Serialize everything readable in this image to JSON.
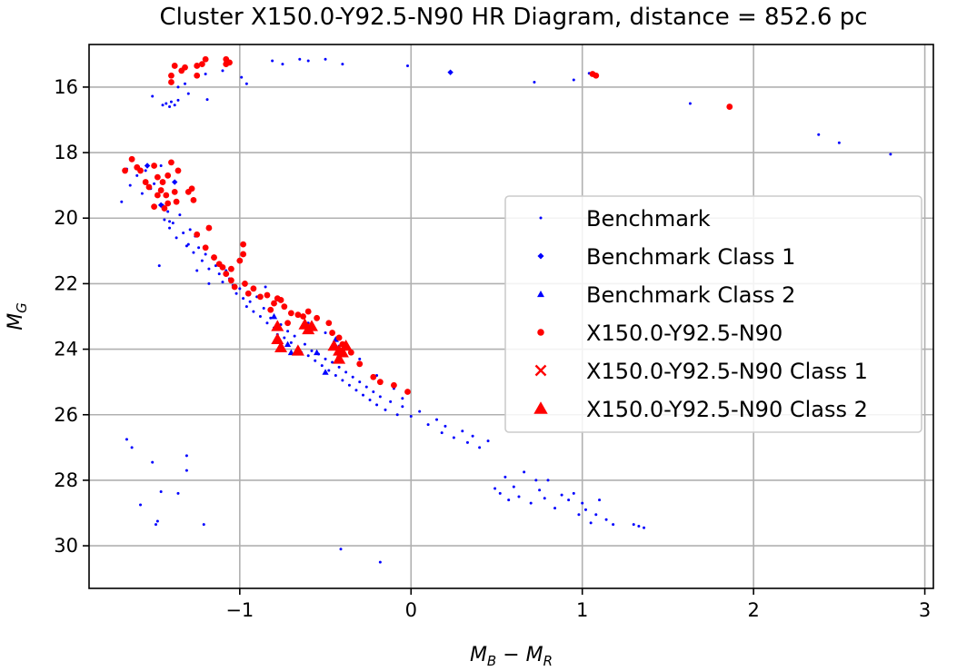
{
  "chart_data": {
    "type": "scatter",
    "title": "Cluster X150.0-Y92.5-N90 HR Diagram, distance = 852.6 pc",
    "xlabel_base": "M",
    "xlabel_sub1": "B",
    "xlabel_sep": " − ",
    "xlabel_base2": "M",
    "xlabel_sub2": "R",
    "ylabel_base": "M",
    "ylabel_sub": "G",
    "xlim": [
      -1.88,
      3.05
    ],
    "ylim": [
      31.3,
      14.7
    ],
    "y_inverted": true,
    "grid": true,
    "legend_position": "right",
    "xticks": [
      -1,
      0,
      1,
      2,
      3
    ],
    "xtick_labels": [
      "−1",
      "0",
      "1",
      "2",
      "3"
    ],
    "yticks": [
      16,
      18,
      20,
      22,
      24,
      26,
      28,
      30
    ],
    "ytick_labels": [
      "16",
      "18",
      "20",
      "22",
      "24",
      "26",
      "28",
      "30"
    ],
    "colors": {
      "benchmark": "#0000ff",
      "cluster": "#ff0000"
    },
    "series": [
      {
        "name": "Benchmark",
        "marker": "point",
        "color": "#0000ff",
        "points": [
          [
            -1.51,
            16.28
          ],
          [
            -1.45,
            16.55
          ],
          [
            -1.43,
            16.5
          ],
          [
            -1.41,
            16.6
          ],
          [
            -1.4,
            16.45
          ],
          [
            -1.38,
            16.55
          ],
          [
            -1.36,
            16.4
          ],
          [
            -1.36,
            16.0
          ],
          [
            -1.32,
            15.9
          ],
          [
            -1.3,
            16.2
          ],
          [
            -1.19,
            16.38
          ],
          [
            -1.2,
            15.6
          ],
          [
            -1.1,
            15.5
          ],
          [
            -0.99,
            15.7
          ],
          [
            -0.96,
            15.9
          ],
          [
            -0.81,
            15.2
          ],
          [
            -0.75,
            15.3
          ],
          [
            -0.65,
            15.15
          ],
          [
            -0.6,
            15.2
          ],
          [
            -0.5,
            15.15
          ],
          [
            -0.4,
            15.3
          ],
          [
            -0.02,
            15.35
          ],
          [
            0.72,
            15.85
          ],
          [
            0.95,
            15.78
          ],
          [
            1.04,
            15.58
          ],
          [
            1.63,
            16.5
          ],
          [
            2.38,
            17.45
          ],
          [
            2.5,
            17.7
          ],
          [
            2.8,
            18.05
          ],
          [
            -1.69,
            19.5
          ],
          [
            -1.66,
            18.5
          ],
          [
            -1.64,
            19.0
          ],
          [
            -1.6,
            18.7
          ],
          [
            -1.57,
            19.25
          ],
          [
            -1.55,
            18.55
          ],
          [
            -1.52,
            19.1
          ],
          [
            -1.5,
            18.95
          ],
          [
            -1.48,
            19.3
          ],
          [
            -1.46,
            18.4
          ],
          [
            -1.45,
            19.6
          ],
          [
            -1.44,
            20.05
          ],
          [
            -1.42,
            19.8
          ],
          [
            -1.41,
            20.3
          ],
          [
            -1.39,
            20.15
          ],
          [
            -1.37,
            20.6
          ],
          [
            -1.35,
            19.9
          ],
          [
            -1.33,
            20.45
          ],
          [
            -1.31,
            20.85
          ],
          [
            -1.29,
            20.35
          ],
          [
            -1.27,
            21.05
          ],
          [
            -1.26,
            20.55
          ],
          [
            -1.24,
            20.9
          ],
          [
            -1.22,
            21.3
          ],
          [
            -1.2,
            21.1
          ],
          [
            -1.18,
            21.55
          ],
          [
            -1.16,
            21.2
          ],
          [
            -1.14,
            21.45
          ],
          [
            -1.12,
            21.7
          ],
          [
            -1.1,
            21.95
          ],
          [
            -1.08,
            21.6
          ],
          [
            -1.06,
            21.85
          ],
          [
            -1.04,
            22.05
          ],
          [
            -1.02,
            22.3
          ],
          [
            -1.0,
            22.15
          ],
          [
            -0.98,
            22.45
          ],
          [
            -0.96,
            22.7
          ],
          [
            -0.94,
            22.55
          ],
          [
            -0.92,
            22.85
          ],
          [
            -0.9,
            22.4
          ],
          [
            -0.88,
            23.0
          ],
          [
            -0.86,
            22.75
          ],
          [
            -0.84,
            23.2
          ],
          [
            -0.82,
            23.05
          ],
          [
            -0.8,
            23.35
          ],
          [
            -0.78,
            23.55
          ],
          [
            -0.76,
            23.25
          ],
          [
            -0.74,
            23.65
          ],
          [
            -0.72,
            23.45
          ],
          [
            -0.7,
            23.8
          ],
          [
            -0.68,
            23.6
          ],
          [
            -0.66,
            23.95
          ],
          [
            -0.64,
            24.1
          ],
          [
            -0.62,
            23.85
          ],
          [
            -0.6,
            24.2
          ],
          [
            -0.58,
            24.05
          ],
          [
            -0.56,
            24.35
          ],
          [
            -0.54,
            24.15
          ],
          [
            -0.52,
            24.5
          ],
          [
            -0.5,
            24.3
          ],
          [
            -0.48,
            24.65
          ],
          [
            -0.46,
            24.4
          ],
          [
            -0.44,
            24.8
          ],
          [
            -0.42,
            24.55
          ],
          [
            -0.4,
            24.95
          ],
          [
            -0.38,
            24.7
          ],
          [
            -0.36,
            25.1
          ],
          [
            -0.34,
            24.85
          ],
          [
            -0.32,
            25.25
          ],
          [
            -0.3,
            25.0
          ],
          [
            -0.28,
            25.4
          ],
          [
            -0.26,
            25.15
          ],
          [
            -0.24,
            25.55
          ],
          [
            -0.22,
            25.3
          ],
          [
            -0.2,
            25.7
          ],
          [
            -0.18,
            25.45
          ],
          [
            -0.15,
            25.85
          ],
          [
            -0.12,
            25.6
          ],
          [
            -0.08,
            26.0
          ],
          [
            -0.05,
            25.75
          ],
          [
            0.0,
            26.05
          ],
          [
            0.05,
            25.9
          ],
          [
            0.1,
            26.3
          ],
          [
            0.15,
            26.15
          ],
          [
            0.18,
            26.55
          ],
          [
            0.2,
            26.35
          ],
          [
            0.25,
            26.7
          ],
          [
            0.3,
            26.5
          ],
          [
            0.33,
            26.85
          ],
          [
            0.36,
            26.65
          ],
          [
            0.4,
            27.0
          ],
          [
            0.45,
            26.8
          ],
          [
            0.49,
            28.25
          ],
          [
            0.52,
            28.4
          ],
          [
            0.55,
            27.9
          ],
          [
            0.57,
            28.6
          ],
          [
            0.6,
            28.2
          ],
          [
            0.63,
            28.5
          ],
          [
            0.66,
            27.75
          ],
          [
            0.7,
            28.7
          ],
          [
            0.73,
            28.0
          ],
          [
            0.75,
            28.3
          ],
          [
            0.78,
            28.55
          ],
          [
            0.8,
            28.0
          ],
          [
            0.84,
            28.85
          ],
          [
            0.88,
            28.45
          ],
          [
            0.92,
            28.6
          ],
          [
            0.95,
            28.4
          ],
          [
            0.98,
            29.05
          ],
          [
            1.0,
            28.7
          ],
          [
            1.02,
            28.9
          ],
          [
            1.05,
            29.3
          ],
          [
            1.08,
            29.05
          ],
          [
            1.1,
            28.6
          ],
          [
            1.14,
            29.2
          ],
          [
            1.18,
            29.35
          ],
          [
            1.3,
            29.35
          ],
          [
            1.33,
            29.4
          ],
          [
            1.36,
            29.45
          ],
          [
            -1.41,
            20.1
          ],
          [
            -1.47,
            21.45
          ],
          [
            -1.25,
            21.6
          ],
          [
            -1.18,
            22.0
          ],
          [
            -1.3,
            20.8
          ],
          [
            -0.85,
            22.1
          ],
          [
            -0.7,
            22.9
          ],
          [
            -0.6,
            23.2
          ],
          [
            -0.5,
            23.5
          ],
          [
            -0.42,
            23.9
          ],
          [
            -0.3,
            24.3
          ],
          [
            -0.2,
            24.8
          ],
          [
            -0.1,
            25.2
          ],
          [
            -0.05,
            25.5
          ],
          [
            -1.66,
            26.75
          ],
          [
            -1.63,
            27.0
          ],
          [
            -1.58,
            28.75
          ],
          [
            -1.51,
            27.45
          ],
          [
            -1.49,
            29.35
          ],
          [
            -1.48,
            29.25
          ],
          [
            -1.46,
            28.35
          ],
          [
            -1.36,
            28.4
          ],
          [
            -1.31,
            27.7
          ],
          [
            -1.31,
            27.25
          ],
          [
            -1.21,
            29.35
          ],
          [
            -0.41,
            30.1
          ],
          [
            -0.18,
            30.5
          ]
        ]
      },
      {
        "name": "Benchmark Class 1",
        "marker": "diamond",
        "color": "#0000ff",
        "points": [
          [
            -1.54,
            18.4
          ],
          [
            -1.46,
            19.6
          ],
          [
            0.23,
            15.55
          ],
          [
            -1.38,
            18.9
          ]
        ]
      },
      {
        "name": "Benchmark Class 2",
        "marker": "triangle-small",
        "color": "#0000ff",
        "points": [
          [
            -0.8,
            23.0
          ],
          [
            -0.72,
            23.85
          ],
          [
            -0.66,
            24.05
          ],
          [
            -0.55,
            24.1
          ],
          [
            -0.5,
            24.7
          ],
          [
            -0.42,
            24.1
          ],
          [
            -0.38,
            23.85
          ],
          [
            -0.44,
            23.7
          ],
          [
            -0.6,
            23.35
          ],
          [
            -0.7,
            24.1
          ]
        ]
      },
      {
        "name": "X150.0-Y92.5-N90",
        "marker": "dot",
        "color": "#ff0000",
        "points": [
          [
            -1.38,
            15.35
          ],
          [
            -1.4,
            15.65
          ],
          [
            -1.4,
            15.85
          ],
          [
            -1.34,
            15.5
          ],
          [
            -1.32,
            15.4
          ],
          [
            -1.25,
            15.65
          ],
          [
            -1.25,
            15.35
          ],
          [
            -1.22,
            15.3
          ],
          [
            -1.2,
            15.15
          ],
          [
            -1.08,
            15.3
          ],
          [
            -1.08,
            15.15
          ],
          [
            -1.06,
            15.25
          ],
          [
            1.06,
            15.6
          ],
          [
            1.08,
            15.65
          ],
          [
            1.86,
            16.6
          ],
          [
            -1.67,
            18.55
          ],
          [
            -1.63,
            18.2
          ],
          [
            -1.6,
            18.45
          ],
          [
            -1.58,
            18.55
          ],
          [
            -1.55,
            18.9
          ],
          [
            -1.53,
            19.05
          ],
          [
            -1.5,
            18.4
          ],
          [
            -1.48,
            18.75
          ],
          [
            -1.46,
            19.15
          ],
          [
            -1.45,
            18.9
          ],
          [
            -1.43,
            19.3
          ],
          [
            -1.42,
            19.55
          ],
          [
            -1.4,
            18.3
          ],
          [
            -1.38,
            19.2
          ],
          [
            -1.37,
            19.5
          ],
          [
            -1.36,
            18.55
          ],
          [
            -1.5,
            19.65
          ],
          [
            -1.48,
            19.3
          ],
          [
            -1.44,
            19.7
          ],
          [
            -1.42,
            18.7
          ],
          [
            -1.3,
            19.2
          ],
          [
            -1.28,
            19.1
          ],
          [
            -1.27,
            19.45
          ],
          [
            -1.25,
            20.5
          ],
          [
            -1.2,
            20.9
          ],
          [
            -1.18,
            20.3
          ],
          [
            -1.15,
            21.2
          ],
          [
            -1.12,
            21.4
          ],
          [
            -1.1,
            21.5
          ],
          [
            -1.08,
            21.7
          ],
          [
            -1.05,
            21.9
          ],
          [
            -1.03,
            22.1
          ],
          [
            -1.0,
            21.3
          ],
          [
            -0.98,
            20.8
          ],
          [
            -0.97,
            22.0
          ],
          [
            -0.95,
            22.3
          ],
          [
            -0.88,
            22.4
          ],
          [
            -0.84,
            22.35
          ],
          [
            -0.8,
            22.6
          ],
          [
            -0.78,
            22.45
          ],
          [
            -0.76,
            22.5
          ],
          [
            -0.74,
            22.7
          ],
          [
            -0.7,
            22.9
          ],
          [
            -0.66,
            22.95
          ],
          [
            -0.63,
            23.0
          ],
          [
            -0.6,
            22.85
          ],
          [
            -0.55,
            23.05
          ],
          [
            -0.48,
            23.2
          ],
          [
            -0.46,
            23.5
          ],
          [
            -0.42,
            23.65
          ],
          [
            -0.4,
            23.85
          ],
          [
            -0.35,
            24.1
          ],
          [
            -0.3,
            24.45
          ],
          [
            -0.22,
            24.85
          ],
          [
            -0.18,
            25.0
          ],
          [
            -0.1,
            25.1
          ],
          [
            -0.02,
            25.3
          ],
          [
            -0.98,
            21.1
          ],
          [
            -1.05,
            21.55
          ],
          [
            -0.92,
            22.15
          ],
          [
            -0.82,
            22.8
          ],
          [
            -0.72,
            23.2
          ]
        ]
      },
      {
        "name": "X150.0-Y92.5-N90 Class 1",
        "marker": "x",
        "color": "#ff0000",
        "points": []
      },
      {
        "name": "X150.0-Y92.5-N90 Class 2",
        "marker": "triangle",
        "color": "#ff0000",
        "points": [
          [
            -0.78,
            23.3
          ],
          [
            -0.78,
            23.7
          ],
          [
            -0.76,
            23.95
          ],
          [
            -0.66,
            24.05
          ],
          [
            -0.62,
            23.25
          ],
          [
            -0.6,
            23.4
          ],
          [
            -0.58,
            23.3
          ],
          [
            -0.45,
            23.9
          ],
          [
            -0.42,
            24.05
          ],
          [
            -0.42,
            24.3
          ],
          [
            -0.38,
            23.9
          ],
          [
            -0.4,
            24.1
          ]
        ]
      }
    ],
    "legend": [
      {
        "label": "Benchmark",
        "marker": "point",
        "color": "#0000ff"
      },
      {
        "label": "Benchmark Class 1",
        "marker": "diamond",
        "color": "#0000ff"
      },
      {
        "label": "Benchmark Class 2",
        "marker": "triangle-small",
        "color": "#0000ff"
      },
      {
        "label": "X150.0-Y92.5-N90",
        "marker": "dot",
        "color": "#ff0000"
      },
      {
        "label": "X150.0-Y92.5-N90 Class 1",
        "marker": "x",
        "color": "#ff0000"
      },
      {
        "label": "X150.0-Y92.5-N90 Class 2",
        "marker": "triangle",
        "color": "#ff0000"
      }
    ]
  }
}
